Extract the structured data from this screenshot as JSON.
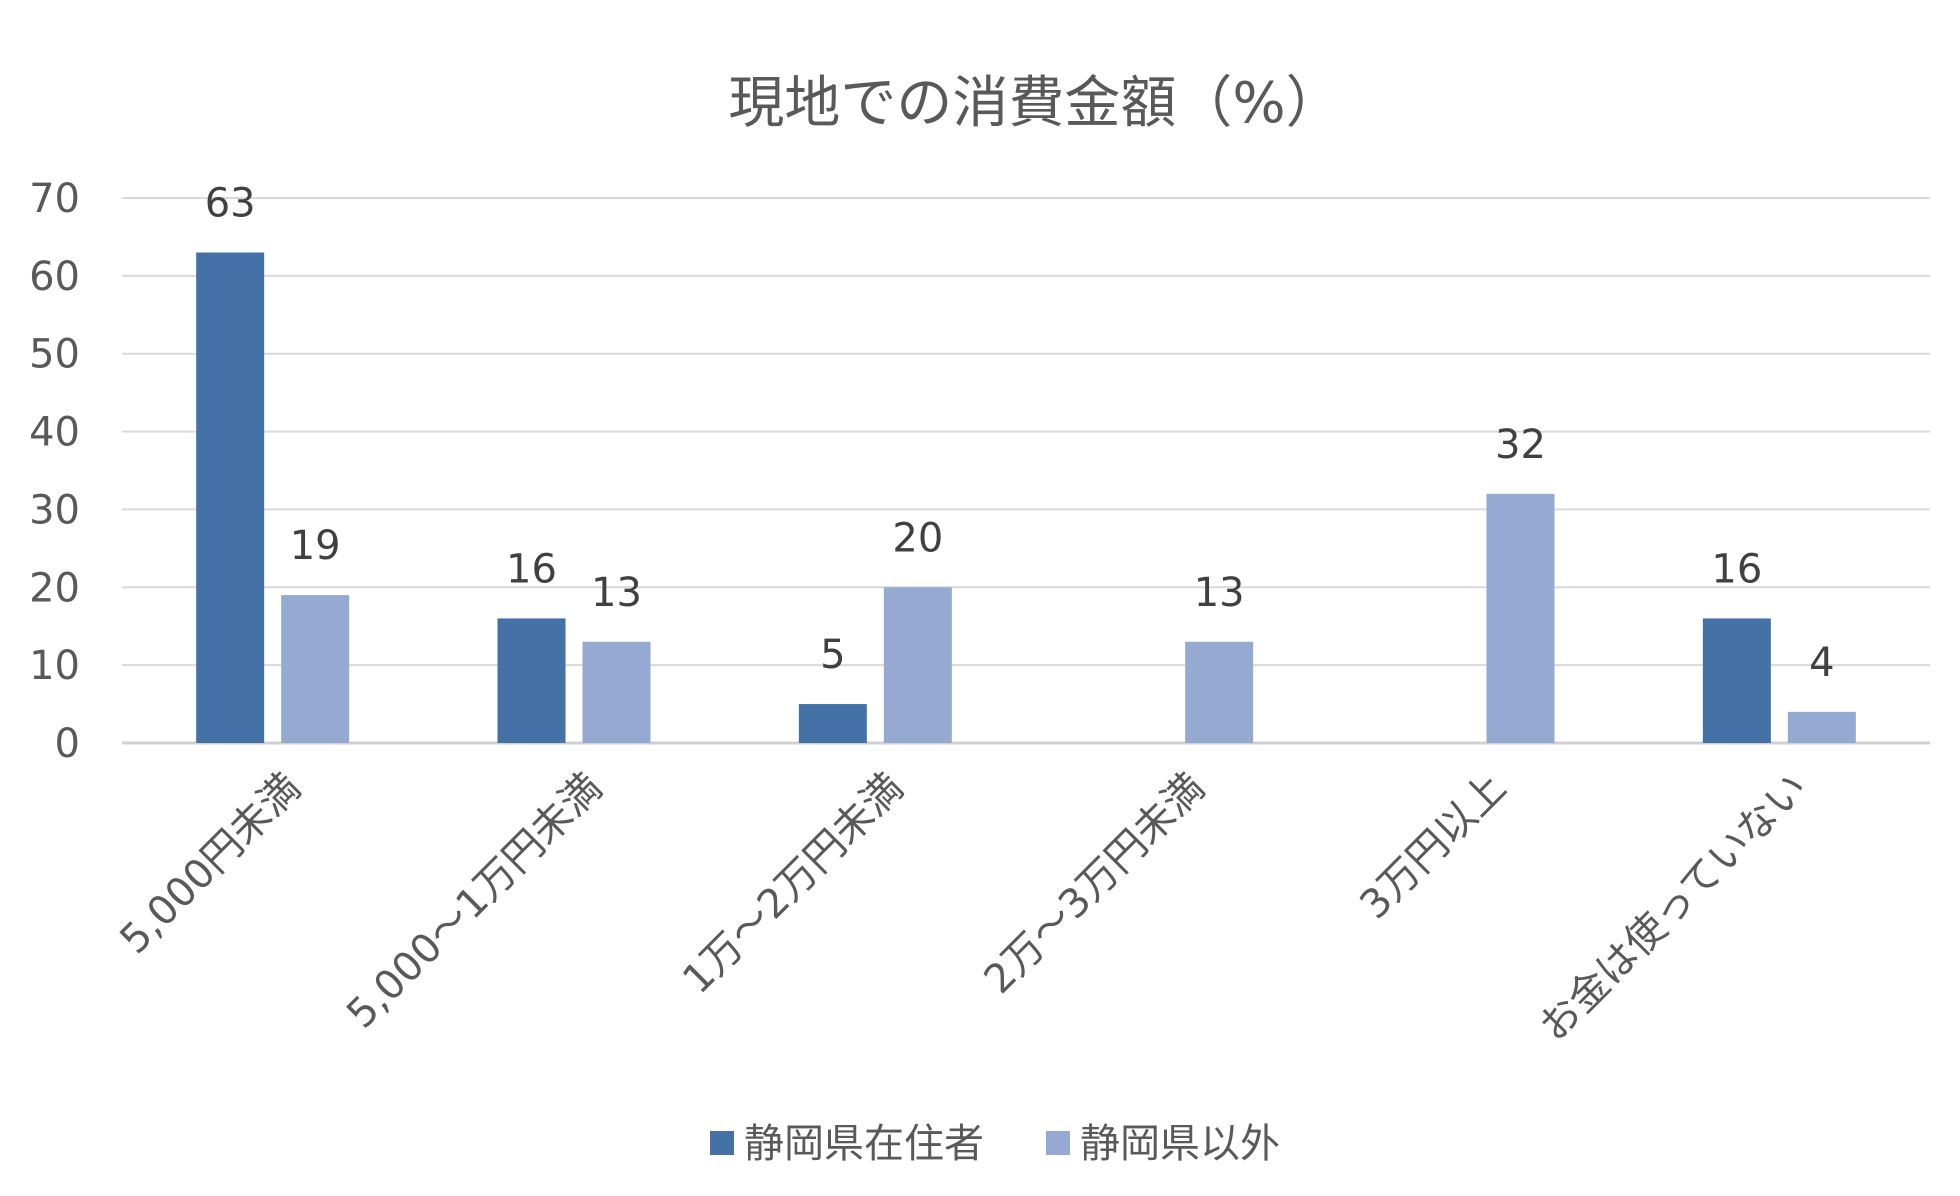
{
  "chart_data": {
    "type": "bar",
    "title": "現地での消費金額（%）",
    "xlabel": "",
    "ylabel": "",
    "ylim": [
      0,
      70
    ],
    "yticks": [
      0,
      10,
      20,
      30,
      40,
      50,
      60,
      70
    ],
    "categories": [
      "5,000円未満",
      "5,000～1万円未満",
      "1万～2万円未満",
      "2万～3万円未満",
      "3万円以上",
      "お金は使っていない"
    ],
    "series": [
      {
        "name": "静岡県在住者",
        "color": "#4472a6",
        "values": [
          63,
          16,
          5,
          null,
          null,
          16
        ]
      },
      {
        "name": "静岡県以外",
        "color": "#94aad3",
        "values": [
          19,
          13,
          20,
          13,
          32,
          4
        ]
      }
    ],
    "grid": true,
    "legend_position": "bottom-center"
  }
}
